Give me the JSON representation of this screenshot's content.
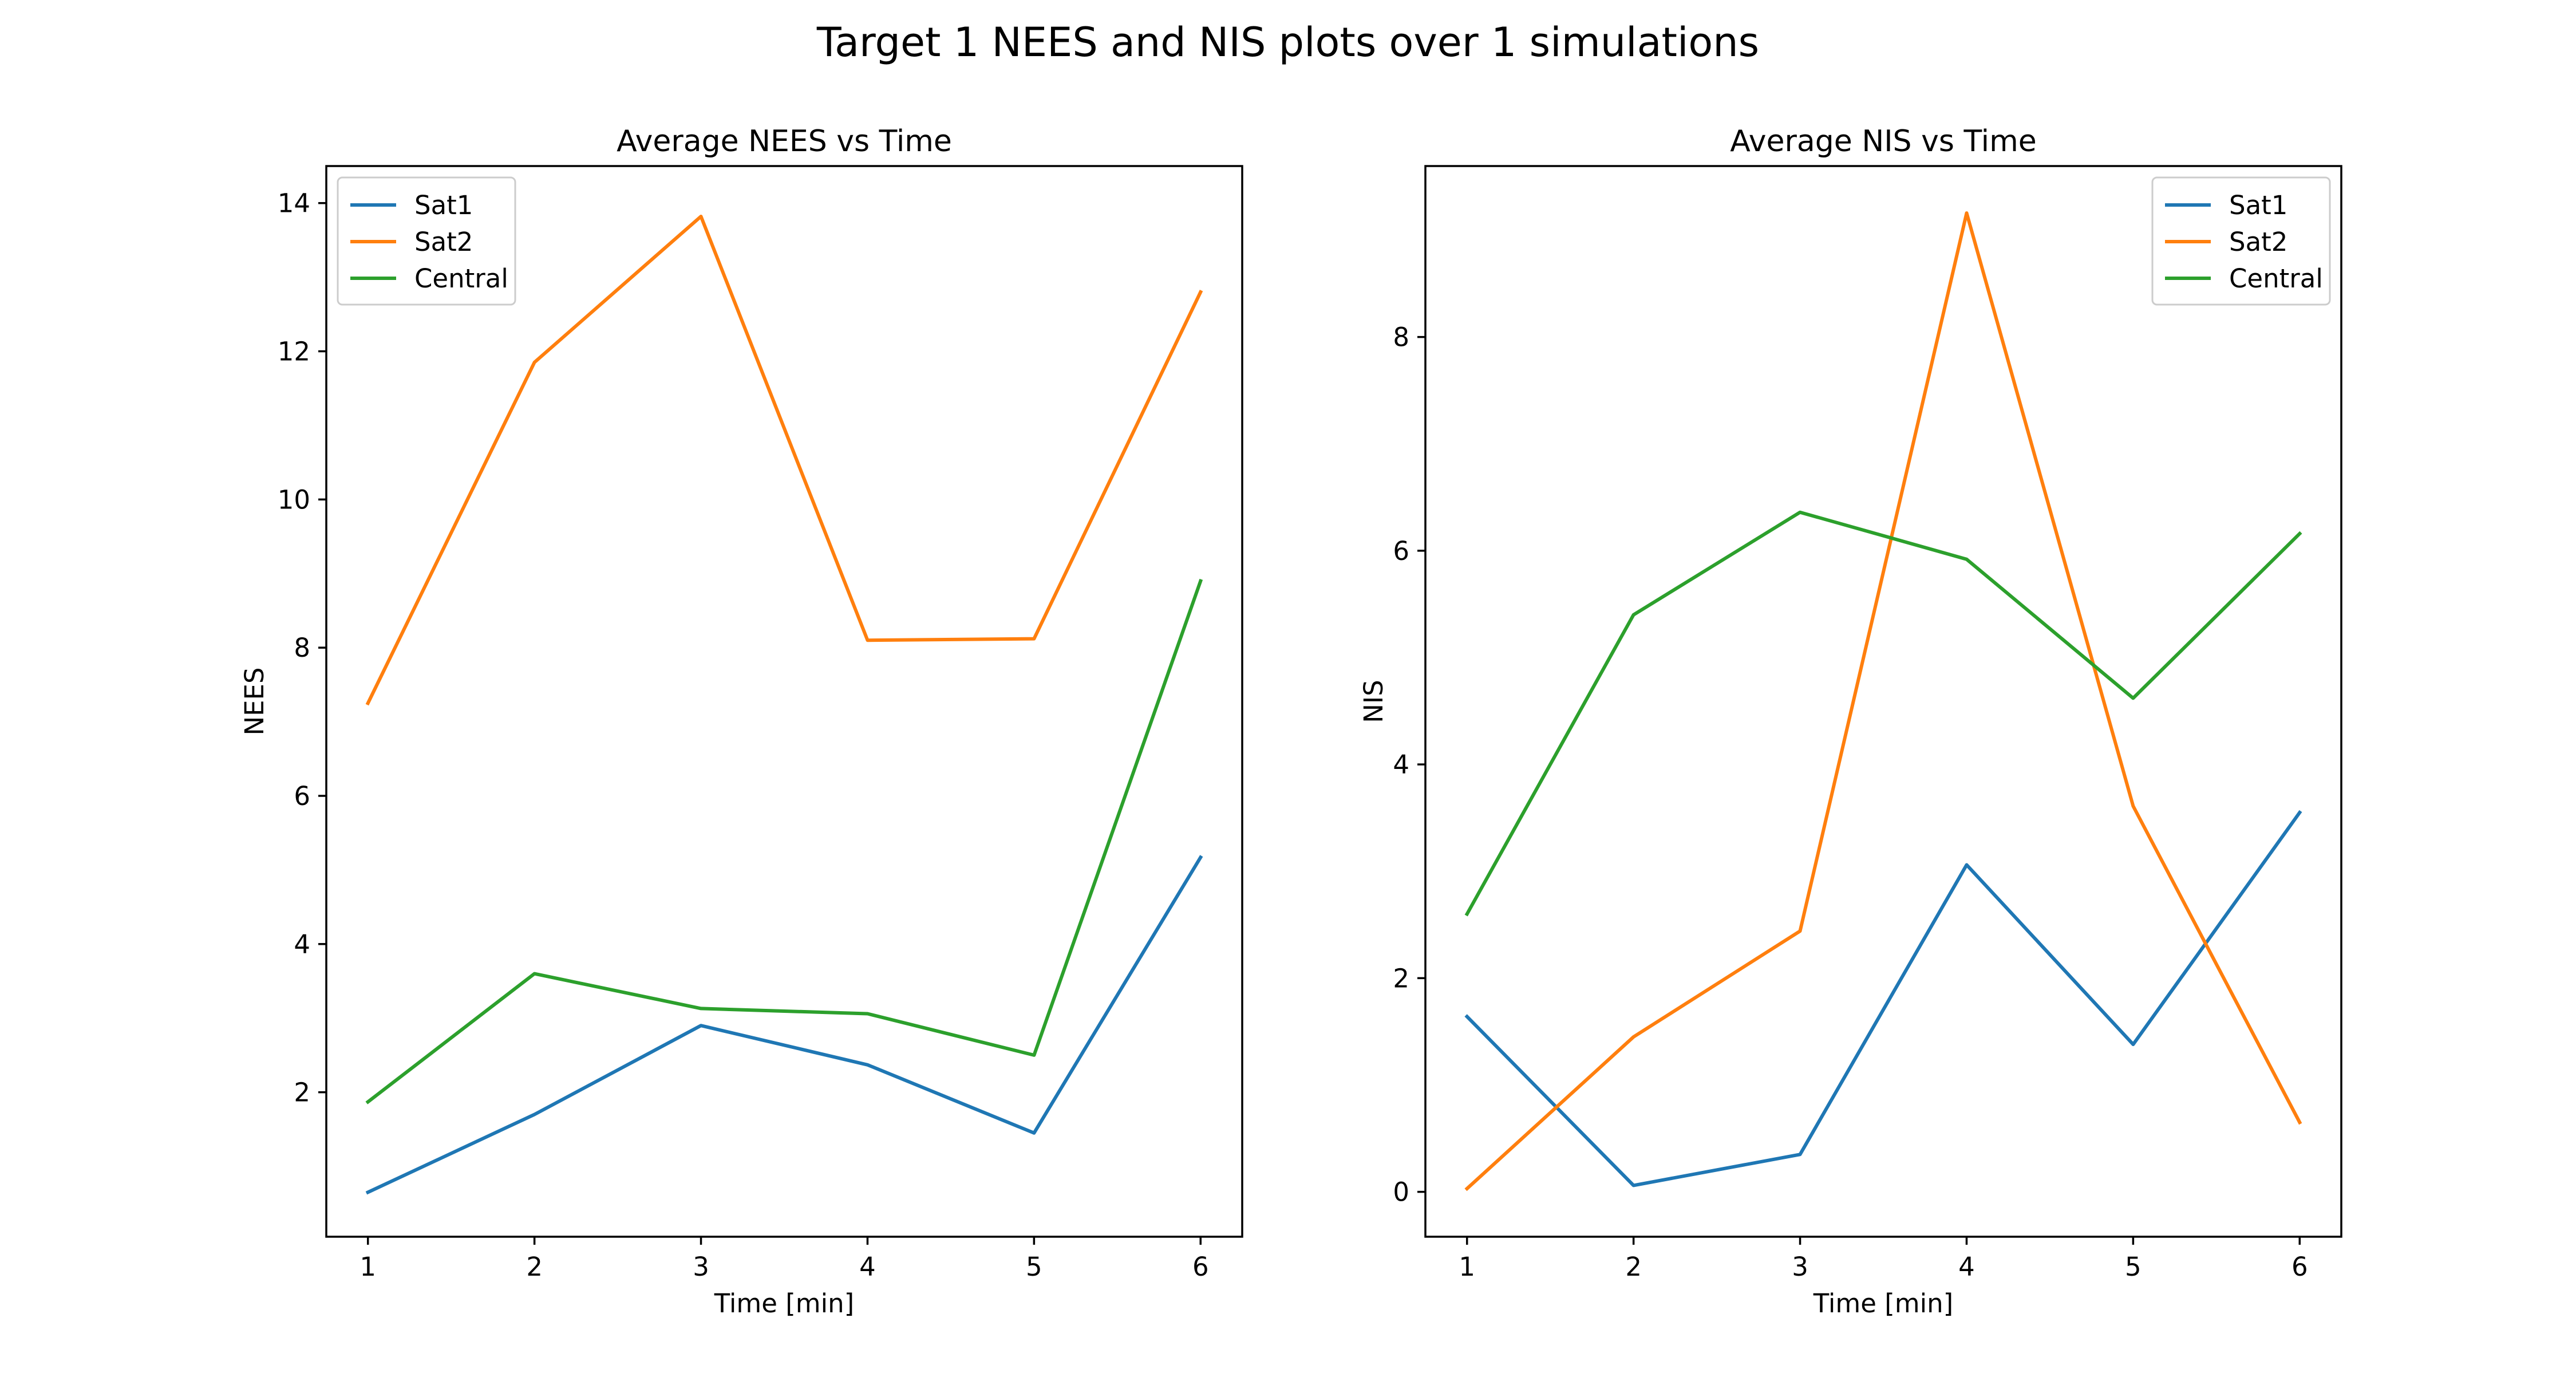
{
  "figure": {
    "title": "Target 1 NEES and NIS plots over 1 simulations"
  },
  "colors": {
    "Sat1": "#1f77b4",
    "Sat2": "#ff7f0e",
    "Central": "#2ca02c"
  },
  "chart_data": [
    {
      "type": "line",
      "title": "Average NEES vs Time",
      "xlabel": "Time [min]",
      "ylabel": "NEES",
      "x": [
        1,
        2,
        3,
        4,
        5,
        6
      ],
      "xticks": [
        1,
        2,
        3,
        4,
        5,
        6
      ],
      "yticks": [
        2,
        4,
        6,
        8,
        10,
        12,
        14
      ],
      "xlim": [
        0.75,
        6.25
      ],
      "ylim": [
        0.05,
        14.5
      ],
      "legend": "upper-left",
      "grid": false,
      "series": [
        {
          "name": "Sat1",
          "values": [
            0.65,
            1.7,
            2.9,
            2.37,
            1.45,
            5.17
          ]
        },
        {
          "name": "Sat2",
          "values": [
            7.25,
            11.85,
            13.82,
            8.1,
            8.12,
            12.8
          ]
        },
        {
          "name": "Central",
          "values": [
            1.87,
            3.6,
            3.13,
            3.06,
            2.5,
            8.9
          ]
        }
      ]
    },
    {
      "type": "line",
      "title": "Average NIS vs Time",
      "xlabel": "Time [min]",
      "ylabel": "NIS",
      "x": [
        1,
        2,
        3,
        4,
        5,
        6
      ],
      "xticks": [
        1,
        2,
        3,
        4,
        5,
        6
      ],
      "yticks": [
        0,
        2,
        4,
        6,
        8
      ],
      "xlim": [
        0.75,
        6.25
      ],
      "ylim": [
        -0.42,
        9.6
      ],
      "legend": "upper-right",
      "grid": false,
      "series": [
        {
          "name": "Sat1",
          "values": [
            1.64,
            0.06,
            0.35,
            3.06,
            1.38,
            3.55
          ]
        },
        {
          "name": "Sat2",
          "values": [
            0.03,
            1.45,
            2.44,
            9.16,
            3.61,
            0.65
          ]
        },
        {
          "name": "Central",
          "values": [
            2.6,
            5.4,
            6.36,
            5.92,
            4.62,
            6.16
          ]
        }
      ]
    }
  ]
}
